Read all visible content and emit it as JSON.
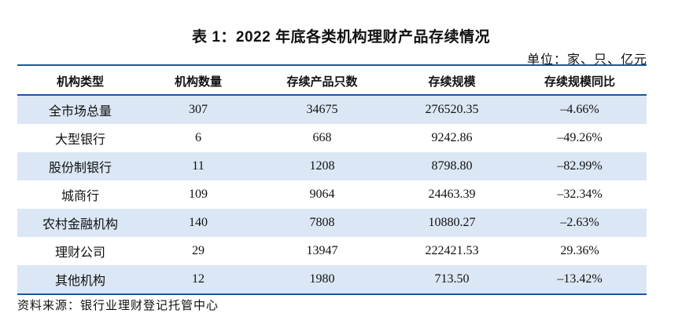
{
  "title": "表 1：2022 年底各类机构理财产品存续情况",
  "unit": "单位：家、只、亿元",
  "table": {
    "headers": [
      "机构类型",
      "机构数量",
      "存续产品只数",
      "存续规模",
      "存续规模同比"
    ],
    "rows": [
      [
        "全市场总量",
        "307",
        "34675",
        "276520.35",
        "–4.66%"
      ],
      [
        "大型银行",
        "6",
        "668",
        "9242.86",
        "–49.26%"
      ],
      [
        "股份制银行",
        "11",
        "1208",
        "8798.80",
        "–82.99%"
      ],
      [
        "城商行",
        "109",
        "9064",
        "24463.39",
        "–32.34%"
      ],
      [
        "农村金融机构",
        "140",
        "7808",
        "10880.27",
        "–2.63%"
      ],
      [
        "理财公司",
        "29",
        "13947",
        "222421.53",
        "29.36%"
      ],
      [
        "其他机构",
        "12",
        "1980",
        "713.50",
        "–13.42%"
      ]
    ]
  },
  "source": "资料来源：银行业理财登记托管中心",
  "colors": {
    "rule": "#1a56a6",
    "row_shade": "#dbe7f4"
  }
}
